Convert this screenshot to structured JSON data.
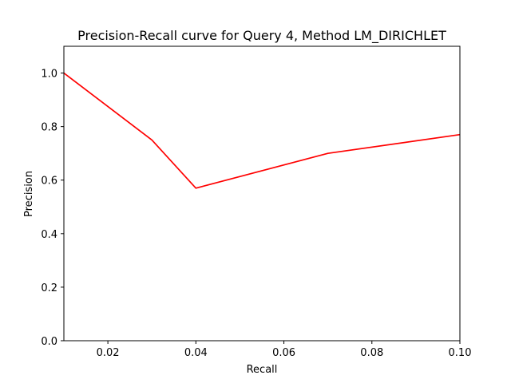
{
  "chart_data": {
    "type": "line",
    "title": "Precision-Recall curve for Query 4, Method LM_DIRICHLET",
    "xlabel": "Recall",
    "ylabel": "Precision",
    "xlim": [
      0.01,
      0.1
    ],
    "ylim": [
      0.0,
      1.1
    ],
    "xticks": [
      0.02,
      0.04,
      0.06,
      0.08,
      0.1
    ],
    "xtick_labels": [
      "0.02",
      "0.04",
      "0.06",
      "0.08",
      "0.10"
    ],
    "yticks": [
      0.0,
      0.2,
      0.4,
      0.6,
      0.8,
      1.0
    ],
    "ytick_labels": [
      "0.0",
      "0.2",
      "0.4",
      "0.6",
      "0.8",
      "1.0"
    ],
    "grid": false,
    "series": [
      {
        "color": "#ff0000",
        "x": [
          0.01,
          0.03,
          0.04,
          0.07,
          0.1
        ],
        "y": [
          1.0,
          0.75,
          0.57,
          0.7,
          0.77
        ]
      }
    ]
  }
}
